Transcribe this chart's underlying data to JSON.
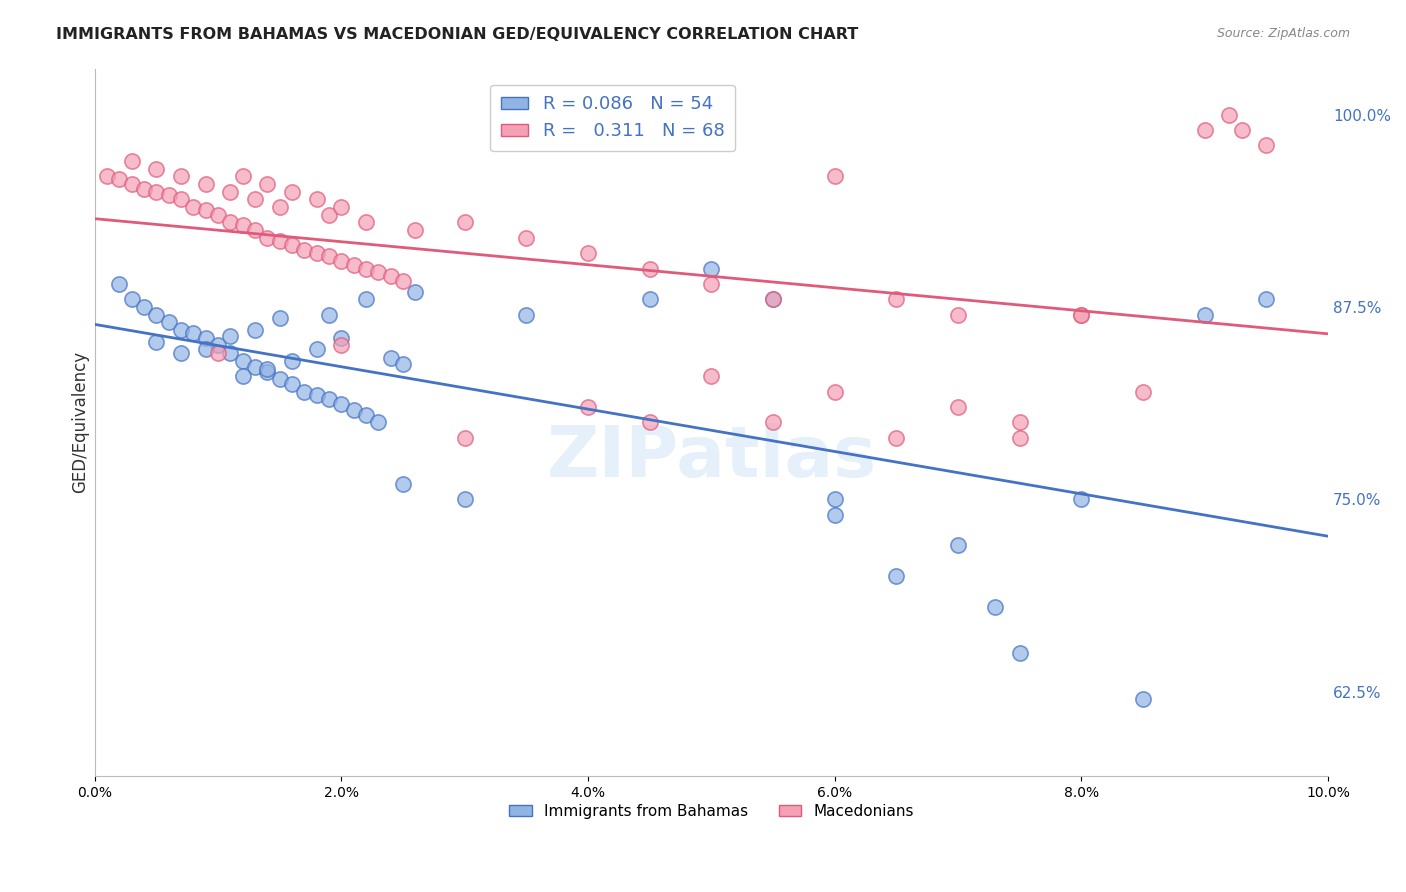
{
  "title": "IMMIGRANTS FROM BAHAMAS VS MACEDONIAN GED/EQUIVALENCY CORRELATION CHART",
  "source": "Source: ZipAtlas.com",
  "ylabel": "GED/Equivalency",
  "right_yticks": [
    0.625,
    0.75,
    0.875,
    1.0
  ],
  "right_yticklabels": [
    "62.5%",
    "75.0%",
    "87.5%",
    "100.0%"
  ],
  "xlim": [
    0.0,
    0.1
  ],
  "ylim": [
    0.57,
    1.03
  ],
  "R_blue": 0.086,
  "N_blue": 54,
  "R_pink": 0.311,
  "N_pink": 68,
  "blue_color": "#92b4e3",
  "pink_color": "#f4a0b5",
  "blue_line_color": "#4472c4",
  "pink_line_color": "#e05a7a",
  "legend_label_blue": "Immigrants from Bahamas",
  "legend_label_pink": "Macedonians",
  "blue_scatter_x": [
    0.002,
    0.003,
    0.004,
    0.005,
    0.006,
    0.007,
    0.008,
    0.009,
    0.01,
    0.011,
    0.012,
    0.013,
    0.014,
    0.015,
    0.016,
    0.017,
    0.018,
    0.019,
    0.02,
    0.021,
    0.022,
    0.023,
    0.024,
    0.025,
    0.005,
    0.007,
    0.009,
    0.011,
    0.013,
    0.015,
    0.019,
    0.022,
    0.026,
    0.012,
    0.014,
    0.016,
    0.018,
    0.02,
    0.035,
    0.045,
    0.05,
    0.055,
    0.06,
    0.065,
    0.07,
    0.073,
    0.075,
    0.08,
    0.085,
    0.09,
    0.025,
    0.03,
    0.06,
    0.095
  ],
  "blue_scatter_y": [
    0.89,
    0.88,
    0.875,
    0.87,
    0.865,
    0.86,
    0.858,
    0.855,
    0.85,
    0.845,
    0.84,
    0.836,
    0.833,
    0.828,
    0.825,
    0.82,
    0.818,
    0.815,
    0.812,
    0.808,
    0.805,
    0.8,
    0.842,
    0.838,
    0.852,
    0.845,
    0.848,
    0.856,
    0.86,
    0.868,
    0.87,
    0.88,
    0.885,
    0.83,
    0.835,
    0.84,
    0.848,
    0.855,
    0.87,
    0.88,
    0.9,
    0.88,
    0.75,
    0.7,
    0.72,
    0.68,
    0.65,
    0.75,
    0.62,
    0.87,
    0.76,
    0.75,
    0.74,
    0.88
  ],
  "pink_scatter_x": [
    0.001,
    0.002,
    0.003,
    0.004,
    0.005,
    0.006,
    0.007,
    0.008,
    0.009,
    0.01,
    0.011,
    0.012,
    0.013,
    0.014,
    0.015,
    0.016,
    0.017,
    0.018,
    0.019,
    0.02,
    0.021,
    0.022,
    0.023,
    0.024,
    0.025,
    0.003,
    0.005,
    0.007,
    0.009,
    0.011,
    0.013,
    0.015,
    0.019,
    0.022,
    0.026,
    0.012,
    0.014,
    0.016,
    0.018,
    0.02,
    0.03,
    0.035,
    0.04,
    0.045,
    0.05,
    0.055,
    0.06,
    0.065,
    0.07,
    0.075,
    0.08,
    0.085,
    0.09,
    0.092,
    0.093,
    0.095,
    0.01,
    0.02,
    0.03,
    0.04,
    0.05,
    0.06,
    0.07,
    0.08,
    0.045,
    0.055,
    0.065,
    0.075
  ],
  "pink_scatter_y": [
    0.96,
    0.958,
    0.955,
    0.952,
    0.95,
    0.948,
    0.945,
    0.94,
    0.938,
    0.935,
    0.93,
    0.928,
    0.925,
    0.92,
    0.918,
    0.915,
    0.912,
    0.91,
    0.908,
    0.905,
    0.902,
    0.9,
    0.898,
    0.895,
    0.892,
    0.97,
    0.965,
    0.96,
    0.955,
    0.95,
    0.945,
    0.94,
    0.935,
    0.93,
    0.925,
    0.96,
    0.955,
    0.95,
    0.945,
    0.94,
    0.93,
    0.92,
    0.91,
    0.9,
    0.89,
    0.88,
    0.96,
    0.88,
    0.87,
    0.8,
    0.87,
    0.82,
    0.99,
    1.0,
    0.99,
    0.98,
    0.845,
    0.85,
    0.79,
    0.81,
    0.83,
    0.82,
    0.81,
    0.87,
    0.8,
    0.8,
    0.79,
    0.79
  ]
}
